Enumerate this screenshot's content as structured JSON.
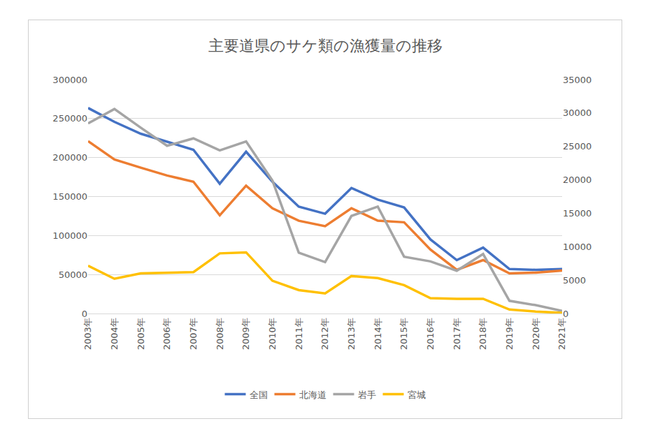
{
  "chart_data": {
    "type": "line",
    "title": "主要道県のサケ類の漁獲量の推移",
    "categories": [
      "2003年",
      "2004年",
      "2005年",
      "2006年",
      "2007年",
      "2008年",
      "2009年",
      "2010年",
      "2011年",
      "2012年",
      "2013年",
      "2014年",
      "2015年",
      "2016年",
      "2017年",
      "2018年",
      "2019年",
      "2020年",
      "2021年"
    ],
    "series": [
      {
        "name": "全国",
        "color": "#4472C4",
        "axis": "y",
        "values": [
          263600,
          245800,
          230600,
          220000,
          210000,
          166500,
          207500,
          169000,
          137000,
          128000,
          161000,
          146000,
          136000,
          95000,
          68500,
          84500,
          57000,
          56000,
          57000
        ]
      },
      {
        "name": "北海道",
        "color": "#ED7D31",
        "axis": "y",
        "values": [
          221000,
          197500,
          187000,
          177000,
          169000,
          126000,
          164000,
          135000,
          119000,
          112000,
          135000,
          119000,
          117000,
          82000,
          56000,
          68500,
          51500,
          52500,
          55000
        ]
      },
      {
        "name": "岩手",
        "color": "#A5A5A5",
        "axis": "y2",
        "values": [
          28450,
          30600,
          27800,
          25100,
          26200,
          24400,
          25750,
          19900,
          9100,
          7700,
          14600,
          16000,
          8500,
          7800,
          6400,
          8900,
          1900,
          1250,
          400
        ]
      },
      {
        "name": "宮城",
        "color": "#FFC000",
        "axis": "y2",
        "values": [
          7150,
          5200,
          6000,
          6100,
          6200,
          9000,
          9150,
          4900,
          3500,
          3000,
          5600,
          5300,
          4250,
          2300,
          2200,
          2200,
          600,
          300,
          100
        ]
      }
    ],
    "ylim": [
      0,
      300000
    ],
    "yticks": [
      0,
      50000,
      100000,
      150000,
      200000,
      250000,
      300000
    ],
    "y2lim": [
      0,
      35000
    ],
    "y2ticks": [
      0,
      5000,
      10000,
      15000,
      20000,
      25000,
      30000,
      35000
    ],
    "grid": true,
    "legend": "bottom"
  }
}
